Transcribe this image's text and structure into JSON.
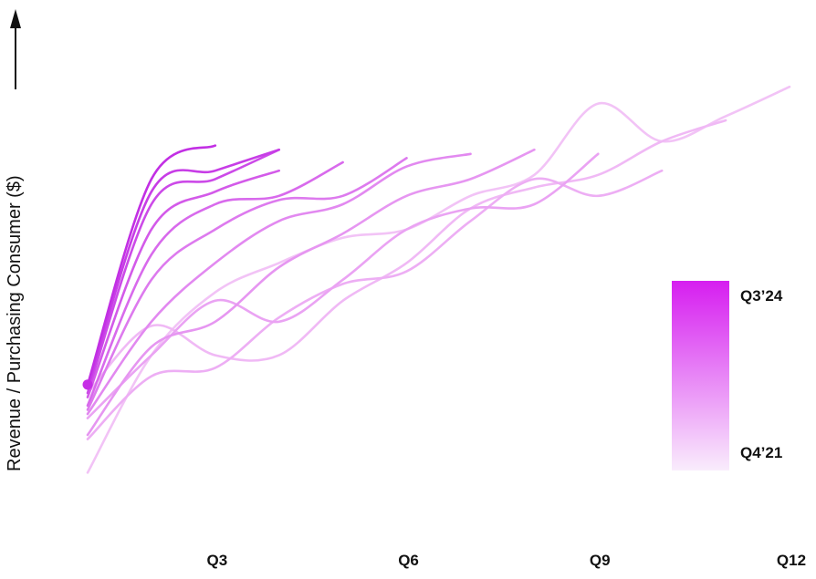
{
  "chart_data": {
    "type": "line",
    "xlabel": "",
    "ylabel": "Revenue / Purchasing Consumer ($)",
    "x_ticks": [
      {
        "label": "Q3",
        "x": 3
      },
      {
        "label": "Q6",
        "x": 6
      },
      {
        "label": "Q9",
        "x": 9
      },
      {
        "label": "Q12",
        "x": 12
      }
    ],
    "xlim": [
      0.3,
      12.1
    ],
    "ylim": [
      0,
      100
    ],
    "grid": false,
    "legend": {
      "type": "gradient",
      "placement": "right",
      "top_label": "Q3’24",
      "bottom_label": "Q4’21",
      "color_top": "#d61ef0",
      "color_bottom": "#f9ecfc"
    },
    "highlight_point": {
      "x": 1,
      "y": 27,
      "color": "#c62ee6"
    },
    "series": [
      {
        "color": "#f2c3f6",
        "points": [
          [
            1,
            6
          ],
          [
            2,
            34
          ],
          [
            3,
            49
          ],
          [
            4,
            56
          ],
          [
            5,
            62
          ],
          [
            6,
            64
          ],
          [
            7,
            72
          ],
          [
            8,
            77
          ],
          [
            9,
            94
          ],
          [
            10,
            85
          ],
          [
            11,
            91
          ],
          [
            12,
            98
          ]
        ]
      },
      {
        "color": "#f0b9f5",
        "points": [
          [
            1,
            25
          ],
          [
            2,
            41
          ],
          [
            3,
            34
          ],
          [
            4,
            34
          ],
          [
            5,
            47
          ],
          [
            6,
            56
          ],
          [
            7,
            69
          ],
          [
            8,
            74
          ],
          [
            9,
            77
          ],
          [
            10,
            85
          ],
          [
            11,
            90
          ]
        ]
      },
      {
        "color": "#edaef4",
        "points": [
          [
            1,
            14
          ],
          [
            2,
            29
          ],
          [
            3,
            31
          ],
          [
            4,
            43
          ],
          [
            5,
            51
          ],
          [
            6,
            54
          ],
          [
            7,
            66
          ],
          [
            8,
            76
          ],
          [
            9,
            72
          ],
          [
            10,
            78
          ]
        ]
      },
      {
        "color": "#eaa3f3",
        "points": [
          [
            1,
            19
          ],
          [
            2,
            34
          ],
          [
            3,
            47
          ],
          [
            4,
            42
          ],
          [
            5,
            52
          ],
          [
            6,
            64
          ],
          [
            7,
            69
          ],
          [
            8,
            70
          ],
          [
            9,
            82
          ]
        ]
      },
      {
        "color": "#e696f1",
        "points": [
          [
            1,
            15
          ],
          [
            2,
            36
          ],
          [
            3,
            42
          ],
          [
            4,
            55
          ],
          [
            5,
            63
          ],
          [
            6,
            72
          ],
          [
            7,
            76
          ],
          [
            8,
            83
          ]
        ]
      },
      {
        "color": "#e289f0",
        "points": [
          [
            1,
            20
          ],
          [
            2,
            42
          ],
          [
            3,
            56
          ],
          [
            4,
            66
          ],
          [
            5,
            70
          ],
          [
            6,
            79
          ],
          [
            7,
            82
          ]
        ]
      },
      {
        "color": "#dd7aee",
        "points": [
          [
            1,
            21
          ],
          [
            2,
            52
          ],
          [
            3,
            64
          ],
          [
            4,
            71
          ],
          [
            5,
            72
          ],
          [
            6,
            81
          ]
        ]
      },
      {
        "color": "#d86aec",
        "points": [
          [
            1,
            22
          ],
          [
            2,
            58
          ],
          [
            3,
            70
          ],
          [
            4,
            72
          ],
          [
            5,
            80
          ]
        ]
      },
      {
        "color": "#d35ae9",
        "points": [
          [
            1,
            24
          ],
          [
            2,
            64
          ],
          [
            3,
            73
          ],
          [
            4,
            78
          ]
        ]
      },
      {
        "color": "#cc4ae8",
        "points": [
          [
            1,
            25
          ],
          [
            2,
            70
          ],
          [
            3,
            76
          ],
          [
            4,
            83
          ]
        ]
      },
      {
        "color": "#c73de6",
        "points": [
          [
            1,
            26
          ],
          [
            2,
            73
          ],
          [
            3,
            78
          ],
          [
            4,
            83
          ]
        ]
      },
      {
        "color": "#c22fe4",
        "points": [
          [
            1,
            27
          ],
          [
            2,
            76
          ],
          [
            3,
            84
          ]
        ]
      }
    ]
  }
}
